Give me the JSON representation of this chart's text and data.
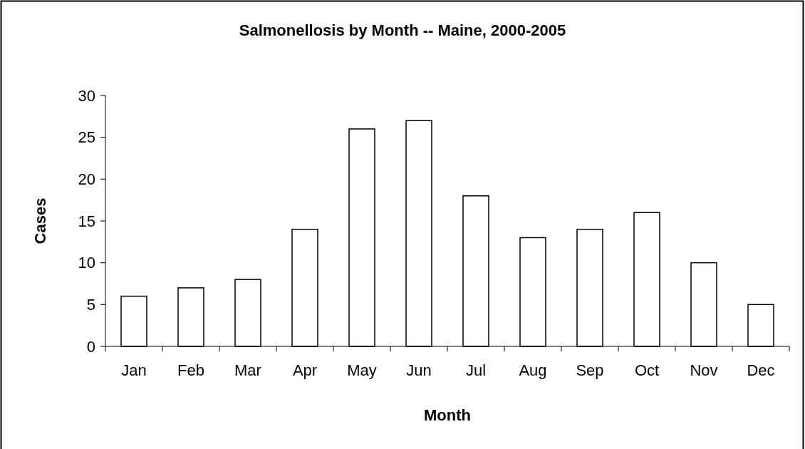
{
  "chart_data": {
    "type": "bar",
    "title": "Salmonellosis by Month -- Maine, 2000-2005",
    "xlabel": "Month",
    "ylabel": "Cases",
    "categories": [
      "Jan",
      "Feb",
      "Mar",
      "Apr",
      "May",
      "Jun",
      "Jul",
      "Aug",
      "Sep",
      "Oct",
      "Nov",
      "Dec"
    ],
    "values": [
      6,
      7,
      8,
      14,
      26,
      27,
      18,
      13,
      14,
      16,
      10,
      5
    ],
    "color": "#ffffff",
    "ylim": [
      0,
      30
    ],
    "yticks": [
      0,
      5,
      10,
      15,
      20,
      25,
      30
    ],
    "grid": false
  }
}
